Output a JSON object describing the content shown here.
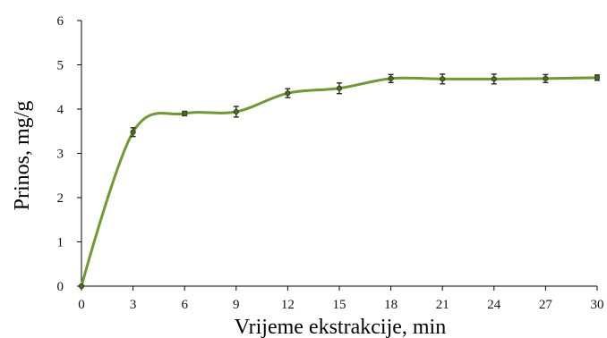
{
  "chart_data": {
    "type": "line",
    "title": "",
    "xlabel": "Vrijeme ekstrakcije, min",
    "ylabel": "Prinos, mg/g",
    "xlim": [
      0,
      30
    ],
    "ylim": [
      0,
      6
    ],
    "xticks": [
      0,
      3,
      6,
      9,
      12,
      15,
      18,
      21,
      24,
      27,
      30
    ],
    "yticks": [
      0,
      1,
      2,
      3,
      4,
      5,
      6
    ],
    "grid": false,
    "legend": "none",
    "series": [
      {
        "x": [
          0,
          3,
          6,
          9,
          12,
          15,
          18,
          21,
          24,
          27,
          30
        ],
        "values": [
          0,
          3.48,
          3.9,
          3.94,
          4.36,
          4.47,
          4.69,
          4.68,
          4.68,
          4.69,
          4.71
        ],
        "error": [
          0,
          0.1,
          0.05,
          0.12,
          0.1,
          0.12,
          0.09,
          0.11,
          0.11,
          0.09,
          0.06
        ],
        "color": "#6f9a2f",
        "marker_color": "#4f6b22"
      }
    ]
  }
}
